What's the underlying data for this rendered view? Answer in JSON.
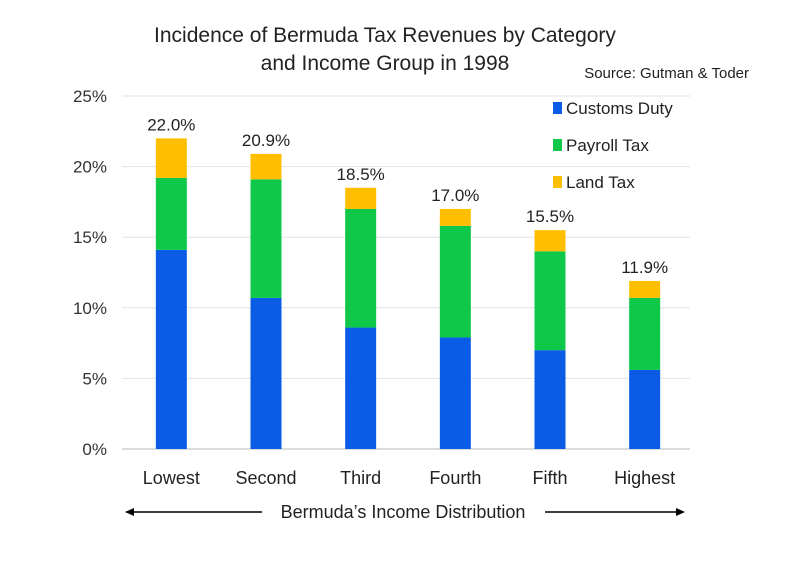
{
  "chart_data": {
    "type": "bar",
    "stacked": true,
    "title_line1": "Incidence of Bermuda Tax Revenues by Category",
    "title_line2": "and Income Group in 1998",
    "source": "Source: Gutman & Toder",
    "xlabel": "Bermuda’s Income Distribution",
    "ylabel": "",
    "ylim": [
      0,
      25
    ],
    "yticks": [
      0,
      5,
      10,
      15,
      20,
      25
    ],
    "ytick_labels": [
      "0%",
      "5%",
      "10%",
      "15%",
      "20%",
      "25%"
    ],
    "grid": true,
    "legend_position": "top-right",
    "categories": [
      "Lowest",
      "Second",
      "Third",
      "Fourth",
      "Fifth",
      "Highest"
    ],
    "series": [
      {
        "name": "Customs Duty",
        "color": "#0A5CE6",
        "values": [
          14.1,
          10.7,
          8.6,
          7.9,
          7.0,
          5.6
        ]
      },
      {
        "name": "Payroll Tax",
        "color": "#0FC84A",
        "values": [
          5.1,
          8.4,
          8.4,
          7.9,
          7.0,
          5.1
        ]
      },
      {
        "name": "Land Tax",
        "color": "#FFBF00",
        "values": [
          2.8,
          1.8,
          1.5,
          1.2,
          1.5,
          1.2
        ]
      }
    ],
    "totals": [
      22.0,
      20.9,
      18.5,
      17.0,
      15.5,
      11.9
    ],
    "total_labels": [
      "22.0%",
      "20.9%",
      "18.5%",
      "17.0%",
      "15.5%",
      "11.9%"
    ]
  }
}
